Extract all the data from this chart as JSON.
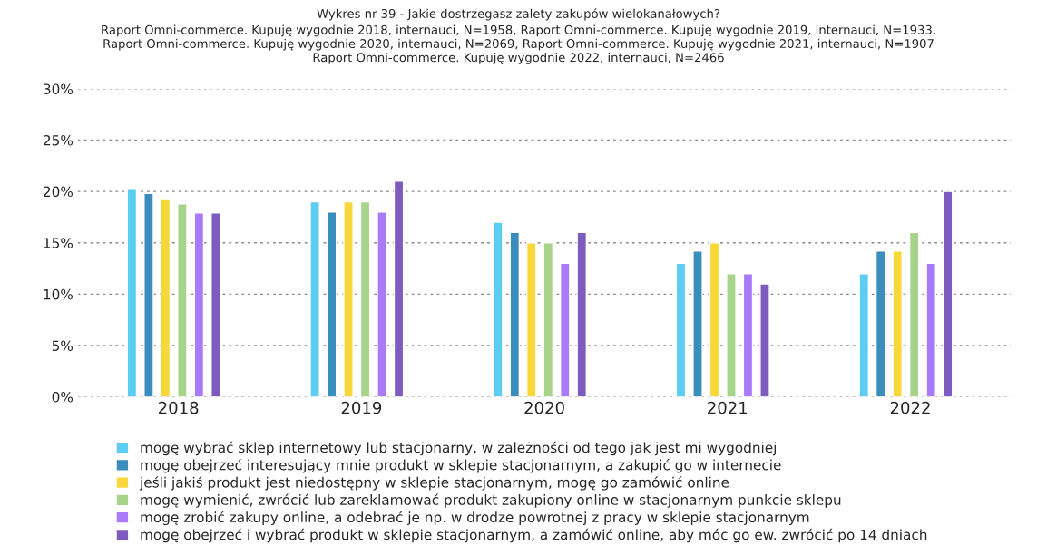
{
  "chart_data": {
    "type": "bar",
    "title": "Wykres nr 39 - Jakie dostrzegasz zalety zakupów wielokanałowych?",
    "subtitle": "Raport Omni-commerce. Kupuję wygodnie 2018, internauci, N=1958, Raport Omni-commerce. Kupuję wygodnie 2019, internauci, N=1933,\nRaport Omni-commerce. Kupuję wygodnie 2020, internauci, N=2069, Raport Omni-commerce. Kupuję wygodnie 2021, internauci, N=1907\nRaport Omni-commerce. Kupuję wygodnie 2022, internauci, N=2466",
    "categories": [
      "2018",
      "2019",
      "2020",
      "2021",
      "2022"
    ],
    "series": [
      {
        "name": "mogę wybrać sklep internetowy lub stacjonarny, w zależności od tego jak jest mi wygodniej",
        "color": "#5bcdf1",
        "values": [
          20.3,
          19,
          17,
          13,
          12
        ]
      },
      {
        "name": "mogę obejrzeć interesujący mnie produkt w sklepie stacjonarnym, a zakupić go w internecie",
        "color": "#3a8dbd",
        "values": [
          19.8,
          18,
          16,
          14.2,
          14.2
        ]
      },
      {
        "name": "jeśli jakiś produkt jest niedostępny w sklepie stacjonarnym, mogę go zamówić online",
        "color": "#f6d83a",
        "values": [
          19.3,
          19,
          15,
          15,
          14.2
        ]
      },
      {
        "name": "mogę wymienić, zwrócić lub zareklamować produkt zakupiony online w stacjonarnym punkcie sklepu",
        "color": "#a8d38a",
        "values": [
          18.8,
          19,
          15,
          12,
          16
        ]
      },
      {
        "name": "mogę zrobić zakupy online, a odebrać je np. w drodze powrotnej z pracy w sklepie stacjonarnym",
        "color": "#a97bfa",
        "values": [
          17.9,
          18,
          13,
          12,
          13
        ]
      },
      {
        "name": "mogę obejrzeć i wybrać produkt w sklepie stacjonarnym, a zamówić online, aby móc go ew. zwrócić po 14 dniach",
        "color": "#7e5bbf",
        "values": [
          17.9,
          21,
          16,
          11,
          20
        ]
      }
    ],
    "ylim": [
      0,
      30
    ],
    "yticks": [
      {
        "value": 0,
        "label": "0%"
      },
      {
        "value": 5,
        "label": "5%"
      },
      {
        "value": 10,
        "label": "10%"
      },
      {
        "value": 15,
        "label": "15%"
      },
      {
        "value": 20,
        "label": "20%"
      },
      {
        "value": 25,
        "label": "25%"
      },
      {
        "value": 30,
        "label": "30%"
      }
    ],
    "grid": "y",
    "legend": "bottom"
  }
}
